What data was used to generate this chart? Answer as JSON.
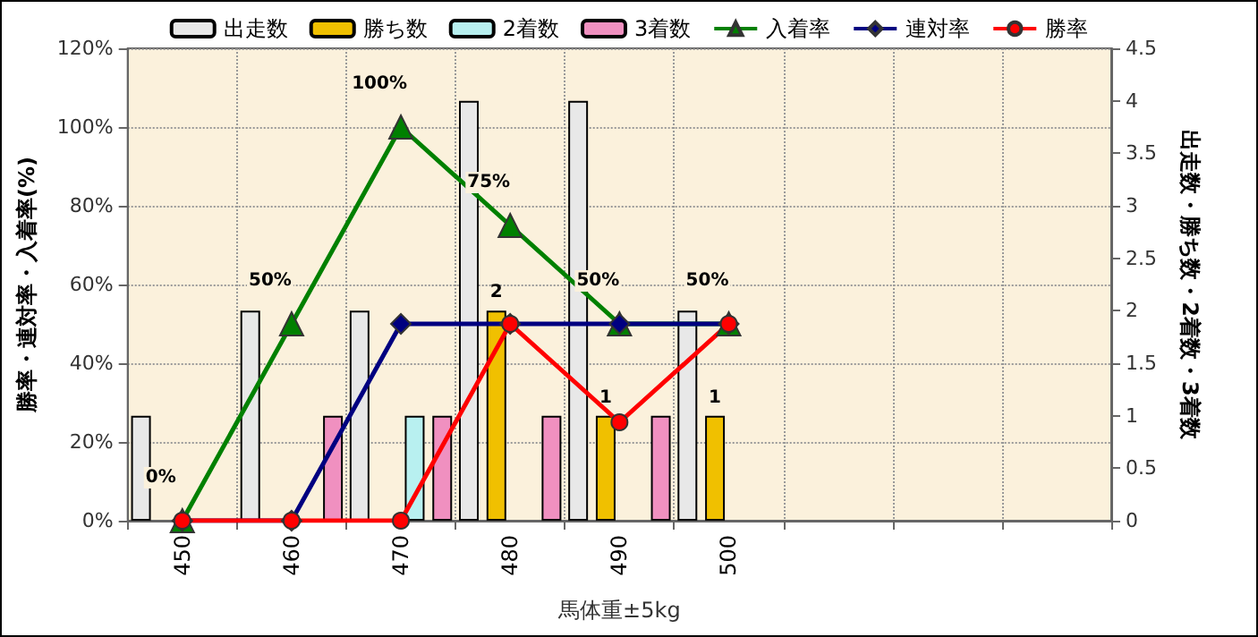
{
  "chart_data": {
    "type": "bar",
    "xlabel": "馬体重±5kg",
    "ylabel": "勝率・連対率・入着率(%)",
    "y2label": "出走数・勝ち数・2着数・3着数",
    "categories": [
      "450",
      "460",
      "470",
      "480",
      "490",
      "500",
      null,
      null,
      null
    ],
    "series": [
      {
        "name": "出走数",
        "axis": "y2",
        "color": "#e8e8e8",
        "values": [
          1,
          2,
          2,
          4,
          4,
          2,
          null,
          null,
          null
        ]
      },
      {
        "name": "勝ち数",
        "axis": "y2",
        "color": "#f0c000",
        "values": [
          null,
          null,
          null,
          2,
          1,
          1,
          null,
          null,
          null
        ],
        "value_labels": [
          null,
          null,
          null,
          "2",
          "1",
          "1",
          null,
          null,
          null
        ]
      },
      {
        "name": "2着数",
        "axis": "y2",
        "color": "#b8f0f0",
        "values": [
          null,
          null,
          1,
          null,
          null,
          null,
          null,
          null,
          null
        ]
      },
      {
        "name": "3着数",
        "axis": "y2",
        "color": "#f090c0",
        "values": [
          null,
          1,
          1,
          1,
          1,
          null,
          null,
          null,
          null
        ]
      },
      {
        "name": "入着率",
        "type": "line",
        "color": "#008000",
        "marker": "triangle",
        "values": [
          0,
          50,
          100,
          75,
          50,
          50,
          null,
          null,
          null
        ],
        "value_labels": [
          "0%",
          "50%",
          "100%",
          "75%",
          "50%",
          "50%",
          null,
          null,
          null
        ]
      },
      {
        "name": "連対率",
        "type": "line",
        "color": "#000080",
        "marker": "diamond",
        "values": [
          0,
          0,
          50,
          50,
          50,
          50,
          null,
          null,
          null
        ]
      },
      {
        "name": "勝率",
        "type": "line",
        "color": "#ff0000",
        "marker": "circle",
        "values": [
          0,
          0,
          0,
          50,
          25,
          50,
          null,
          null,
          null
        ]
      }
    ],
    "ylim": [
      0,
      120
    ],
    "yticks": [
      {
        "value": 0,
        "label": "0%"
      },
      {
        "value": 20,
        "label": "20%"
      },
      {
        "value": 40,
        "label": "40%"
      },
      {
        "value": 60,
        "label": "60%"
      },
      {
        "value": 80,
        "label": "80%"
      },
      {
        "value": 100,
        "label": "100%"
      },
      {
        "value": 120,
        "label": "120%"
      }
    ],
    "y2lim": [
      0,
      4.5
    ],
    "y2ticks": [
      0,
      0.5,
      1,
      1.5,
      2,
      2.5,
      3,
      3.5,
      4,
      4.5
    ],
    "grid": true,
    "legend": "top"
  }
}
